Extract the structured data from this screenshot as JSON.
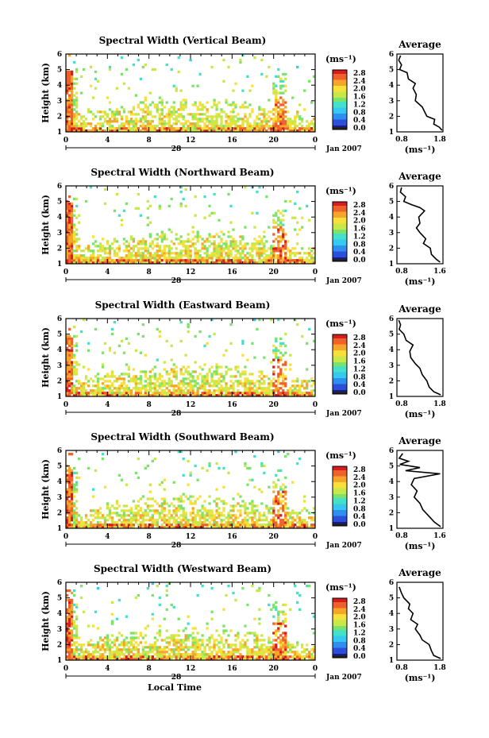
{
  "chart_data": [
    {
      "type": "heatmap",
      "title": "Spectral Width (Vertical Beam)",
      "ylabel": "Height (km)",
      "xlabel": "",
      "x_ticks": [
        "0",
        "4",
        "8",
        "12",
        "16",
        "20",
        "0"
      ],
      "y_ticks": [
        "1",
        "2",
        "3",
        "4",
        "5",
        "6"
      ],
      "date_label": "28",
      "month_year": "Jan 2007",
      "colorbar": {
        "unit": "(ms⁻¹)",
        "ticks": [
          "2.8",
          "2.4",
          "2.0",
          "1.6",
          "1.2",
          "0.8",
          "0.4",
          "0.0"
        ]
      },
      "average": {
        "title": "Average",
        "xlabel": "(ms⁻¹)",
        "x_ticks": [
          "0.8",
          "1.8"
        ],
        "y_ticks": [
          "1",
          "2",
          "3",
          "4",
          "5",
          "6"
        ],
        "xlim": [
          0.8,
          1.8
        ],
        "ylim": [
          1,
          6
        ],
        "profile": [
          [
            1.78,
            1.1
          ],
          [
            1.72,
            1.3
          ],
          [
            1.6,
            1.5
          ],
          [
            1.62,
            1.8
          ],
          [
            1.45,
            2.0
          ],
          [
            1.4,
            2.3
          ],
          [
            1.35,
            2.6
          ],
          [
            1.2,
            3.0
          ],
          [
            1.22,
            3.4
          ],
          [
            1.15,
            3.8
          ],
          [
            1.2,
            4.1
          ],
          [
            1.05,
            4.4
          ],
          [
            1.02,
            4.8
          ],
          [
            0.86,
            5.0
          ],
          [
            0.9,
            5.3
          ],
          [
            0.84,
            5.6
          ],
          [
            0.88,
            5.9
          ]
        ]
      }
    },
    {
      "type": "heatmap",
      "title": "Spectral Width (Northward Beam)",
      "ylabel": "Height (km)",
      "xlabel": "",
      "x_ticks": [
        "0",
        "4",
        "8",
        "12",
        "16",
        "20",
        "0"
      ],
      "y_ticks": [
        "1",
        "2",
        "3",
        "4",
        "5",
        "6"
      ],
      "date_label": "28",
      "month_year": "Jan 2007",
      "colorbar": {
        "unit": "(ms⁻¹)",
        "ticks": [
          "2.8",
          "2.4",
          "2.0",
          "1.6",
          "1.2",
          "0.8",
          "0.4",
          "0.0"
        ]
      },
      "average": {
        "title": "Average",
        "xlabel": "(ms⁻¹)",
        "x_ticks": [
          "0.8",
          "1.6"
        ],
        "y_ticks": [
          "1",
          "2",
          "3",
          "4",
          "5",
          "6"
        ],
        "xlim": [
          0.8,
          1.6
        ],
        "ylim": [
          1,
          6
        ],
        "profile": [
          [
            1.55,
            1.1
          ],
          [
            1.48,
            1.3
          ],
          [
            1.4,
            1.6
          ],
          [
            1.38,
            2.0
          ],
          [
            1.26,
            2.3
          ],
          [
            1.3,
            2.6
          ],
          [
            1.2,
            3.0
          ],
          [
            1.14,
            3.3
          ],
          [
            1.2,
            3.6
          ],
          [
            1.18,
            4.0
          ],
          [
            1.28,
            4.4
          ],
          [
            1.2,
            4.6
          ],
          [
            1.05,
            4.8
          ],
          [
            0.92,
            5.0
          ],
          [
            0.95,
            5.3
          ],
          [
            0.86,
            5.6
          ],
          [
            0.88,
            5.9
          ]
        ]
      }
    },
    {
      "type": "heatmap",
      "title": "Spectral Width (Eastward Beam)",
      "ylabel": "Height (km)",
      "xlabel": "",
      "x_ticks": [
        "0",
        "4",
        "8",
        "12",
        "16",
        "20",
        "0"
      ],
      "y_ticks": [
        "1",
        "2",
        "3",
        "4",
        "5",
        "6"
      ],
      "date_label": "28",
      "month_year": "Jan 2007",
      "colorbar": {
        "unit": "(ms⁻¹)",
        "ticks": [
          "2.8",
          "2.4",
          "2.0",
          "1.6",
          "1.2",
          "0.8",
          "0.4",
          "0.0"
        ]
      },
      "average": {
        "title": "Average",
        "xlabel": "(ms⁻¹)",
        "x_ticks": [
          "0.8",
          "1.8"
        ],
        "y_ticks": [
          "1",
          "2",
          "3",
          "4",
          "5",
          "6"
        ],
        "xlim": [
          0.8,
          1.8
        ],
        "ylim": [
          1,
          6
        ],
        "profile": [
          [
            1.75,
            1.1
          ],
          [
            1.6,
            1.3
          ],
          [
            1.5,
            1.6
          ],
          [
            1.45,
            2.0
          ],
          [
            1.35,
            2.4
          ],
          [
            1.3,
            2.8
          ],
          [
            1.2,
            3.1
          ],
          [
            1.1,
            3.5
          ],
          [
            1.08,
            3.9
          ],
          [
            1.15,
            4.3
          ],
          [
            1.0,
            4.6
          ],
          [
            0.95,
            5.0
          ],
          [
            0.85,
            5.3
          ],
          [
            0.88,
            5.6
          ],
          [
            0.84,
            5.9
          ]
        ]
      }
    },
    {
      "type": "heatmap",
      "title": "Spectral Width (Southward Beam)",
      "ylabel": "Height (km)",
      "xlabel": "",
      "x_ticks": [
        "0",
        "4",
        "8",
        "12",
        "16",
        "20",
        "0"
      ],
      "y_ticks": [
        "1",
        "2",
        "3",
        "4",
        "5",
        "6"
      ],
      "date_label": "28",
      "month_year": "Jan 2007",
      "colorbar": {
        "unit": "(ms⁻¹)",
        "ticks": [
          "2.8",
          "2.4",
          "2.0",
          "1.6",
          "1.2",
          "0.8",
          "0.4",
          "0.0"
        ]
      },
      "average": {
        "title": "Average",
        "xlabel": "(ms⁻¹)",
        "x_ticks": [
          "0.8",
          "1.6"
        ],
        "y_ticks": [
          "1",
          "2",
          "3",
          "4",
          "5",
          "6"
        ],
        "xlim": [
          0.8,
          1.6
        ],
        "ylim": [
          1,
          6
        ],
        "profile": [
          [
            1.56,
            1.1
          ],
          [
            1.45,
            1.4
          ],
          [
            1.35,
            1.8
          ],
          [
            1.25,
            2.2
          ],
          [
            1.2,
            2.6
          ],
          [
            1.1,
            3.0
          ],
          [
            1.15,
            3.4
          ],
          [
            1.05,
            3.8
          ],
          [
            1.1,
            4.2
          ],
          [
            1.55,
            4.5
          ],
          [
            0.95,
            4.7
          ],
          [
            1.2,
            4.9
          ],
          [
            0.85,
            5.1
          ],
          [
            1.0,
            5.3
          ],
          [
            0.84,
            5.5
          ],
          [
            0.9,
            5.8
          ]
        ]
      }
    },
    {
      "type": "heatmap",
      "title": "Spectral Width (Westward Beam)",
      "ylabel": "Height (km)",
      "xlabel": "Local Time",
      "x_ticks": [
        "0",
        "4",
        "8",
        "12",
        "16",
        "20",
        "0"
      ],
      "y_ticks": [
        "1",
        "2",
        "3",
        "4",
        "5",
        "6"
      ],
      "date_label": "28",
      "month_year": "Jan 2007",
      "colorbar": {
        "unit": "(ms⁻¹)",
        "ticks": [
          "2.8",
          "2.4",
          "2.0",
          "1.6",
          "1.2",
          "0.8",
          "0.4",
          "0.0"
        ]
      },
      "average": {
        "title": "Average",
        "xlabel": "(ms⁻¹)",
        "x_ticks": [
          "0.8",
          "1.8"
        ],
        "y_ticks": [
          "1",
          "2",
          "3",
          "4",
          "5",
          "6"
        ],
        "xlim": [
          0.8,
          1.8
        ],
        "ylim": [
          1,
          6
        ],
        "profile": [
          [
            1.75,
            1.1
          ],
          [
            1.6,
            1.3
          ],
          [
            1.55,
            1.6
          ],
          [
            1.5,
            2.0
          ],
          [
            1.35,
            2.3
          ],
          [
            1.3,
            2.6
          ],
          [
            1.2,
            3.0
          ],
          [
            1.25,
            3.3
          ],
          [
            1.1,
            3.6
          ],
          [
            1.15,
            4.0
          ],
          [
            1.05,
            4.3
          ],
          [
            1.08,
            4.6
          ],
          [
            0.95,
            5.0
          ],
          [
            0.9,
            5.3
          ],
          [
            0.85,
            5.7
          ]
        ]
      }
    }
  ]
}
